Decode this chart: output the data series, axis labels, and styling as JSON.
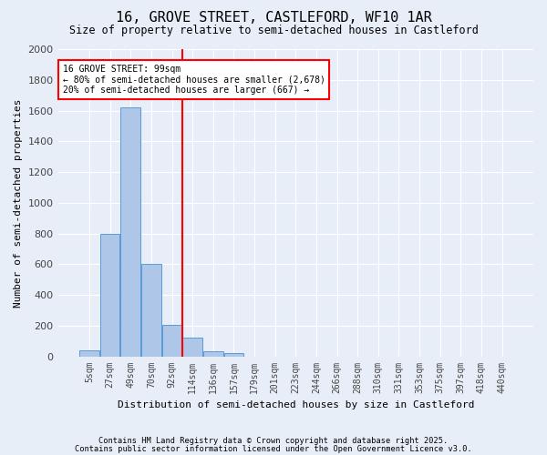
{
  "title1": "16, GROVE STREET, CASTLEFORD, WF10 1AR",
  "title2": "Size of property relative to semi-detached houses in Castleford",
  "xlabel": "Distribution of semi-detached houses by size in Castleford",
  "ylabel": "Number of semi-detached properties",
  "bins": [
    "5sqm",
    "27sqm",
    "49sqm",
    "70sqm",
    "92sqm",
    "114sqm",
    "136sqm",
    "157sqm",
    "179sqm",
    "201sqm",
    "223sqm",
    "244sqm",
    "266sqm",
    "288sqm",
    "310sqm",
    "331sqm",
    "353sqm",
    "375sqm",
    "397sqm",
    "418sqm",
    "440sqm"
  ],
  "bar_values": [
    40,
    800,
    1620,
    600,
    205,
    120,
    30,
    20,
    0,
    0,
    0,
    0,
    0,
    0,
    0,
    0,
    0,
    0,
    0,
    0,
    0
  ],
  "bar_color": "#aec6e8",
  "bar_edge_color": "#5b9bd5",
  "annotation_title": "16 GROVE STREET: 99sqm",
  "annotation_line1": "← 80% of semi-detached houses are smaller (2,678)",
  "annotation_line2": "20% of semi-detached houses are larger (667) →",
  "annotation_color": "red",
  "vline_color": "red",
  "bg_color": "#e8eef8",
  "plot_bg_color": "#e8eef8",
  "grid_color": "white",
  "footnote1": "Contains HM Land Registry data © Crown copyright and database right 2025.",
  "footnote2": "Contains public sector information licensed under the Open Government Licence v3.0.",
  "ylim": [
    0,
    2000
  ],
  "vline_pos": 4.5
}
